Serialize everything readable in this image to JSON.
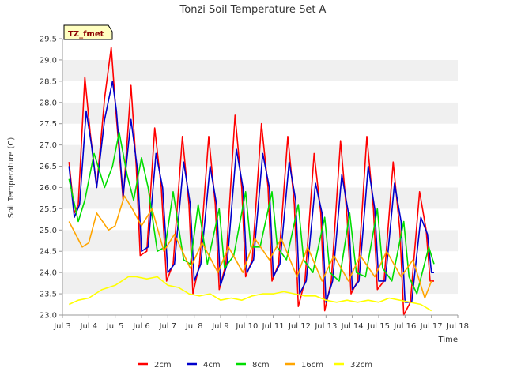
{
  "chart_data": {
    "type": "line",
    "title": "Tonzi Soil Temperature Set A",
    "xlabel": "Time",
    "ylabel": "Soil Temperature (C)",
    "badge": "TZ_fmet",
    "xlim": [
      3,
      18
    ],
    "ylim": [
      23.0,
      29.5
    ],
    "x_ticks": [
      {
        "value": 3,
        "label": "Jul 3"
      },
      {
        "value": 4,
        "label": "Jul 4"
      },
      {
        "value": 5,
        "label": "Jul 5"
      },
      {
        "value": 6,
        "label": "Jul 6"
      },
      {
        "value": 7,
        "label": "Jul 7"
      },
      {
        "value": 8,
        "label": "Jul 8"
      },
      {
        "value": 9,
        "label": "Jul 9"
      },
      {
        "value": 10,
        "label": "Jul 10"
      },
      {
        "value": 11,
        "label": "Jul 11"
      },
      {
        "value": 12,
        "label": "Jul 12"
      },
      {
        "value": 13,
        "label": "Jul 13"
      },
      {
        "value": 14,
        "label": "Jul 14"
      },
      {
        "value": 15,
        "label": "Jul 15"
      },
      {
        "value": 16,
        "label": "Jul 16"
      },
      {
        "value": 17,
        "label": "Jul 17"
      },
      {
        "value": 18,
        "label": "Jul 18"
      }
    ],
    "y_ticks": [
      "23.0",
      "23.5",
      "24.0",
      "24.5",
      "25.0",
      "25.5",
      "26.0",
      "26.5",
      "27.0",
      "27.5",
      "28.0",
      "28.5",
      "29.0",
      "29.5"
    ],
    "grid": "horizontal alternating bands",
    "legend_position": "bottom",
    "series": [
      {
        "name": "2cm",
        "color": "#ff0000",
        "x": [
          3.25,
          3.45,
          3.6,
          3.85,
          4.05,
          4.3,
          4.6,
          4.85,
          5.0,
          5.3,
          5.6,
          5.8,
          5.95,
          6.2,
          6.5,
          6.75,
          6.95,
          7.2,
          7.55,
          7.8,
          7.95,
          8.2,
          8.55,
          8.8,
          8.95,
          9.2,
          9.55,
          9.8,
          9.95,
          10.2,
          10.55,
          10.8,
          10.95,
          11.2,
          11.55,
          11.8,
          11.95,
          12.2,
          12.55,
          12.8,
          12.95,
          13.2,
          13.55,
          13.8,
          13.95,
          14.2,
          14.55,
          14.8,
          14.95,
          15.2,
          15.55,
          15.8,
          15.95,
          16.2,
          16.55,
          16.8,
          16.95,
          17.1
        ],
        "y": [
          26.6,
          25.4,
          25.6,
          28.6,
          27.3,
          26.0,
          28.1,
          29.3,
          28.0,
          25.7,
          28.4,
          26.5,
          24.4,
          24.5,
          27.4,
          26.0,
          23.8,
          24.2,
          27.2,
          25.6,
          23.5,
          24.2,
          27.2,
          25.6,
          23.6,
          24.2,
          27.7,
          26.0,
          23.9,
          24.3,
          27.5,
          26.0,
          23.8,
          24.2,
          27.2,
          25.6,
          23.2,
          23.8,
          26.8,
          25.4,
          23.1,
          23.8,
          27.1,
          25.3,
          23.5,
          23.8,
          27.2,
          25.5,
          23.6,
          23.8,
          26.6,
          25.0,
          23.0,
          23.3,
          25.9,
          25.0,
          23.8,
          23.8
        ]
      },
      {
        "name": "4cm",
        "color": "#0000cc",
        "x": [
          3.25,
          3.45,
          3.65,
          3.9,
          4.1,
          4.3,
          4.6,
          4.9,
          5.05,
          5.3,
          5.6,
          5.85,
          6.0,
          6.25,
          6.55,
          6.8,
          7.0,
          7.25,
          7.6,
          7.85,
          8.0,
          8.25,
          8.6,
          8.85,
          9.0,
          9.25,
          9.6,
          9.85,
          10.0,
          10.25,
          10.6,
          10.85,
          11.0,
          11.25,
          11.6,
          11.85,
          12.0,
          12.25,
          12.6,
          12.85,
          13.0,
          13.25,
          13.6,
          13.85,
          14.0,
          14.25,
          14.6,
          14.85,
          15.0,
          15.25,
          15.6,
          15.85,
          16.0,
          16.25,
          16.6,
          16.85,
          17.0,
          17.1
        ],
        "y": [
          26.5,
          25.3,
          25.6,
          27.8,
          27.0,
          26.0,
          27.6,
          28.5,
          27.8,
          25.8,
          27.6,
          26.4,
          24.5,
          24.6,
          26.8,
          26.0,
          24.0,
          24.2,
          26.6,
          25.6,
          23.8,
          24.2,
          26.5,
          25.6,
          23.7,
          24.2,
          26.9,
          26.0,
          24.0,
          24.3,
          26.8,
          26.0,
          23.9,
          24.2,
          26.6,
          25.7,
          23.5,
          23.8,
          26.1,
          25.4,
          23.3,
          23.8,
          26.3,
          25.4,
          23.6,
          23.8,
          26.5,
          25.5,
          23.8,
          23.8,
          26.1,
          25.2,
          23.3,
          23.3,
          25.3,
          24.9,
          24.0,
          24.0
        ]
      },
      {
        "name": "8cm",
        "color": "#00dd00",
        "x": [
          3.25,
          3.6,
          3.85,
          4.2,
          4.6,
          4.9,
          5.15,
          5.45,
          5.7,
          6.0,
          6.25,
          6.6,
          6.9,
          7.2,
          7.6,
          7.85,
          8.15,
          8.5,
          8.95,
          9.15,
          9.5,
          9.95,
          10.15,
          10.5,
          10.95,
          11.15,
          11.5,
          11.95,
          12.15,
          12.5,
          12.95,
          13.15,
          13.5,
          13.9,
          14.15,
          14.5,
          14.95,
          15.15,
          15.5,
          15.95,
          16.15,
          16.45,
          16.9,
          17.1
        ],
        "y": [
          26.2,
          25.2,
          25.7,
          26.8,
          26.0,
          26.5,
          27.3,
          26.3,
          25.7,
          26.7,
          26.0,
          24.5,
          24.6,
          25.9,
          24.3,
          24.2,
          25.6,
          24.2,
          25.5,
          24.1,
          24.4,
          25.9,
          24.6,
          24.6,
          25.9,
          24.6,
          24.3,
          25.6,
          24.3,
          24.0,
          25.3,
          24.0,
          23.8,
          25.4,
          24.0,
          23.9,
          25.5,
          24.1,
          23.8,
          25.2,
          23.9,
          23.5,
          24.6,
          24.2
        ]
      },
      {
        "name": "16cm",
        "color": "#ffa500",
        "x": [
          3.25,
          3.75,
          4.0,
          4.3,
          4.75,
          5.0,
          5.35,
          5.65,
          6.0,
          6.4,
          6.85,
          7.25,
          7.85,
          8.3,
          8.9,
          9.3,
          9.85,
          10.3,
          10.85,
          11.3,
          11.9,
          12.3,
          12.85,
          13.3,
          13.85,
          14.3,
          14.85,
          15.3,
          15.85,
          16.3,
          16.75,
          17.0
        ],
        "y": [
          25.2,
          24.6,
          24.7,
          25.4,
          25.0,
          25.1,
          25.8,
          25.5,
          25.1,
          25.5,
          24.5,
          24.9,
          24.1,
          24.7,
          24.0,
          24.6,
          24.0,
          24.8,
          24.3,
          24.8,
          23.9,
          24.6,
          23.8,
          24.4,
          23.8,
          24.4,
          23.9,
          24.5,
          23.9,
          24.3,
          23.4,
          23.8
        ]
      },
      {
        "name": "32cm",
        "color": "#ffff00",
        "x": [
          3.25,
          3.6,
          4.0,
          4.5,
          5.0,
          5.5,
          5.8,
          6.2,
          6.6,
          7.0,
          7.4,
          7.8,
          8.2,
          8.6,
          9.0,
          9.4,
          9.8,
          10.2,
          10.6,
          11.0,
          11.4,
          11.8,
          12.2,
          12.6,
          13.0,
          13.4,
          13.8,
          14.2,
          14.6,
          15.0,
          15.4,
          15.8,
          16.2,
          16.6,
          17.0
        ],
        "y": [
          23.25,
          23.35,
          23.4,
          23.6,
          23.7,
          23.9,
          23.9,
          23.85,
          23.9,
          23.7,
          23.65,
          23.5,
          23.45,
          23.5,
          23.35,
          23.4,
          23.35,
          23.45,
          23.5,
          23.5,
          23.55,
          23.5,
          23.45,
          23.45,
          23.35,
          23.3,
          23.35,
          23.3,
          23.35,
          23.3,
          23.4,
          23.35,
          23.3,
          23.25,
          23.1
        ]
      }
    ]
  }
}
